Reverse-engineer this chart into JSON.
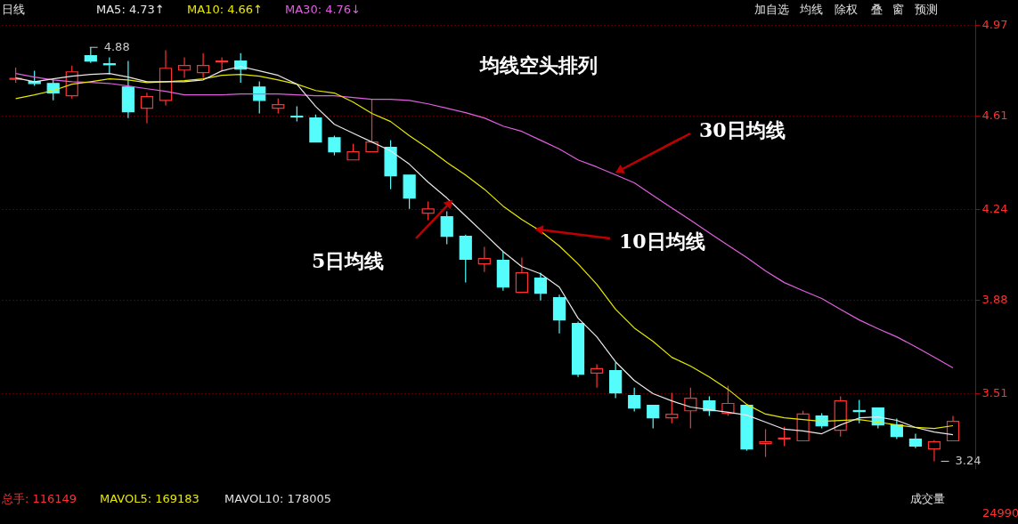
{
  "chart_data": {
    "type": "candlestick",
    "title": "均线空头排列",
    "categories": [
      null,
      null,
      null,
      null,
      null,
      null,
      null,
      null,
      null,
      null,
      null,
      null,
      null,
      null,
      null,
      null,
      null,
      null,
      null,
      null,
      null,
      null,
      null,
      null,
      null,
      null,
      null,
      null,
      null,
      null,
      null,
      null,
      null,
      null,
      null,
      null,
      null,
      null,
      null,
      null,
      null,
      null,
      null,
      null,
      null,
      null,
      null,
      null,
      null,
      null,
      null
    ],
    "ohlc": [
      [
        4.753,
        4.8,
        4.74,
        4.757
      ],
      [
        4.745,
        4.787,
        4.727,
        4.737
      ],
      [
        4.737,
        4.755,
        4.67,
        4.7
      ],
      [
        4.688,
        4.808,
        4.677,
        4.783
      ],
      [
        4.847,
        4.88,
        4.818,
        4.826
      ],
      [
        4.815,
        4.84,
        4.773,
        4.811
      ],
      [
        4.723,
        4.826,
        4.6,
        4.625
      ],
      [
        4.639,
        4.7,
        4.579,
        4.685
      ],
      [
        4.67,
        4.868,
        4.65,
        4.797
      ],
      [
        4.79,
        4.84,
        4.759,
        4.808
      ],
      [
        4.78,
        4.857,
        4.759,
        4.808
      ],
      [
        4.822,
        4.84,
        4.787,
        4.826
      ],
      [
        4.826,
        4.857,
        4.74,
        4.794
      ],
      [
        4.723,
        4.745,
        4.618,
        4.67
      ],
      [
        4.639,
        4.677,
        4.618,
        4.653
      ],
      [
        4.607,
        4.646,
        4.586,
        4.604
      ],
      [
        4.6,
        4.614,
        4.505,
        4.505
      ],
      [
        4.522,
        4.53,
        4.452,
        4.466
      ],
      [
        4.434,
        4.498,
        4.434,
        4.466
      ],
      [
        4.466,
        4.674,
        4.466,
        4.505
      ],
      [
        4.484,
        4.512,
        4.318,
        4.371
      ],
      [
        4.374,
        4.374,
        4.24,
        4.283
      ],
      [
        4.223,
        4.269,
        4.195,
        4.24
      ],
      [
        4.209,
        4.23,
        4.1,
        4.131
      ],
      [
        4.131,
        4.138,
        3.948,
        4.04
      ],
      [
        4.022,
        4.089,
        3.99,
        4.043
      ],
      [
        4.036,
        4.07,
        3.916,
        3.93
      ],
      [
        3.909,
        4.047,
        3.909,
        3.987
      ],
      [
        3.966,
        3.987,
        3.877,
        3.906
      ],
      [
        3.888,
        3.9,
        3.747,
        3.8
      ],
      [
        3.786,
        3.793,
        3.574,
        3.585
      ],
      [
        3.589,
        3.624,
        3.532,
        3.607
      ],
      [
        3.599,
        3.631,
        3.49,
        3.511
      ],
      [
        3.5,
        3.532,
        3.437,
        3.451
      ],
      [
        3.462,
        3.462,
        3.37,
        3.412
      ],
      [
        3.412,
        3.511,
        3.391,
        3.426
      ],
      [
        3.44,
        3.532,
        3.37,
        3.49
      ],
      [
        3.479,
        3.497,
        3.42,
        3.44
      ],
      [
        3.43,
        3.539,
        3.42,
        3.469
      ],
      [
        3.462,
        3.462,
        3.282,
        3.289
      ],
      [
        3.31,
        3.367,
        3.257,
        3.317
      ],
      [
        3.328,
        3.377,
        3.3,
        3.332
      ],
      [
        3.321,
        3.44,
        3.321,
        3.427
      ],
      [
        3.419,
        3.43,
        3.37,
        3.38
      ],
      [
        3.363,
        3.497,
        3.338,
        3.479
      ],
      [
        3.441,
        3.483,
        3.391,
        3.437
      ],
      [
        3.451,
        3.451,
        3.37,
        3.384
      ],
      [
        3.384,
        3.409,
        3.328,
        3.338
      ],
      [
        3.328,
        3.349,
        3.292,
        3.3
      ],
      [
        3.289,
        3.324,
        3.24,
        3.317
      ],
      [
        3.321,
        3.42,
        3.321,
        3.398
      ]
    ],
    "colors": [
      "#ff3232",
      "#54fcfc",
      "#54fcfc",
      "#ff3232",
      "#54fcfc",
      "#54fcfc",
      "#54fcfc",
      "#ff3232",
      "#ff3232",
      "#ff3232",
      "#ff3232",
      "#ff3232",
      "#54fcfc",
      "#54fcfc",
      "#ff3232",
      "#54fcfc",
      "#54fcfc",
      "#54fcfc",
      "#ff3232",
      "#ff3232",
      "#54fcfc",
      "#54fcfc",
      "#ff3232",
      "#54fcfc",
      "#54fcfc",
      "#ff3232",
      "#54fcfc",
      "#ff3232",
      "#54fcfc",
      "#54fcfc",
      "#54fcfc",
      "#ff3232",
      "#54fcfc",
      "#54fcfc",
      "#54fcfc",
      "#ff3232",
      "#ff3232",
      "#54fcfc",
      "#ff3232",
      "#54fcfc",
      "#ff3232",
      "#ff3232",
      "#ff3232",
      "#54fcfc",
      "#ff3232",
      "#54fcfc",
      "#54fcfc",
      "#54fcfc",
      "#54fcfc",
      "#ff3232",
      "#ff3232"
    ],
    "series": [
      {
        "name": "MA5: 4.73↑",
        "type": "line",
        "color": "#e8e8e8",
        "values": [
          4.759,
          4.744,
          4.755,
          4.766,
          4.773,
          4.776,
          4.762,
          4.744,
          4.744,
          4.744,
          4.751,
          4.787,
          4.804,
          4.787,
          4.769,
          4.734,
          4.646,
          4.575,
          4.54,
          4.505,
          4.47,
          4.417,
          4.346,
          4.283,
          4.212,
          4.142,
          4.071,
          4.011,
          3.983,
          3.93,
          3.807,
          3.733,
          3.634,
          3.56,
          3.508,
          3.479,
          3.455,
          3.444,
          3.434,
          3.423,
          3.395,
          3.367,
          3.36,
          3.349,
          3.384,
          3.412,
          3.416,
          3.402,
          3.374,
          3.356,
          3.345
        ]
      },
      {
        "name": "MA10: 4.66↑",
        "type": "line",
        "color": "#e8e800",
        "values": [
          4.677,
          4.692,
          4.709,
          4.734,
          4.744,
          4.755,
          4.751,
          4.74,
          4.744,
          4.748,
          4.755,
          4.769,
          4.773,
          4.766,
          4.751,
          4.734,
          4.709,
          4.699,
          4.663,
          4.618,
          4.586,
          4.53,
          4.48,
          4.424,
          4.374,
          4.318,
          4.251,
          4.198,
          4.152,
          4.093,
          4.022,
          3.941,
          3.842,
          3.768,
          3.715,
          3.652,
          3.617,
          3.574,
          3.525,
          3.465,
          3.427,
          3.412,
          3.405,
          3.398,
          3.402,
          3.405,
          3.395,
          3.384,
          3.374,
          3.37,
          3.381
        ]
      },
      {
        "name": "MA30: 4.76↓",
        "type": "line",
        "color": "#e060e0",
        "values": [
          4.776,
          4.762,
          4.751,
          4.744,
          4.741,
          4.737,
          4.727,
          4.716,
          4.706,
          4.692,
          4.692,
          4.692,
          4.695,
          4.695,
          4.695,
          4.692,
          4.688,
          4.688,
          4.681,
          4.674,
          4.674,
          4.67,
          4.656,
          4.639,
          4.621,
          4.6,
          4.568,
          4.547,
          4.512,
          4.477,
          4.434,
          4.406,
          4.375,
          4.343,
          4.293,
          4.244,
          4.195,
          4.145,
          4.096,
          4.047,
          3.994,
          3.948,
          3.916,
          3.885,
          3.842,
          3.8,
          3.765,
          3.733,
          3.694,
          3.652,
          3.61
        ]
      }
    ],
    "ylim": [
      3.21,
      4.99
    ],
    "yticks": [
      4.97,
      4.61,
      4.24,
      3.88,
      3.51
    ],
    "grid": "y",
    "legend": "top left",
    "annotations": [
      "日线",
      "30日均线",
      "10日均线",
      "5日均线",
      "4.88",
      "3.24",
      "加自选",
      "均线",
      "除权",
      "叠",
      "窗",
      "预测",
      "总手: 116149",
      "MAVOL5: 169183",
      "MAVOL10: 178005",
      "成交量",
      "24990"
    ]
  }
}
